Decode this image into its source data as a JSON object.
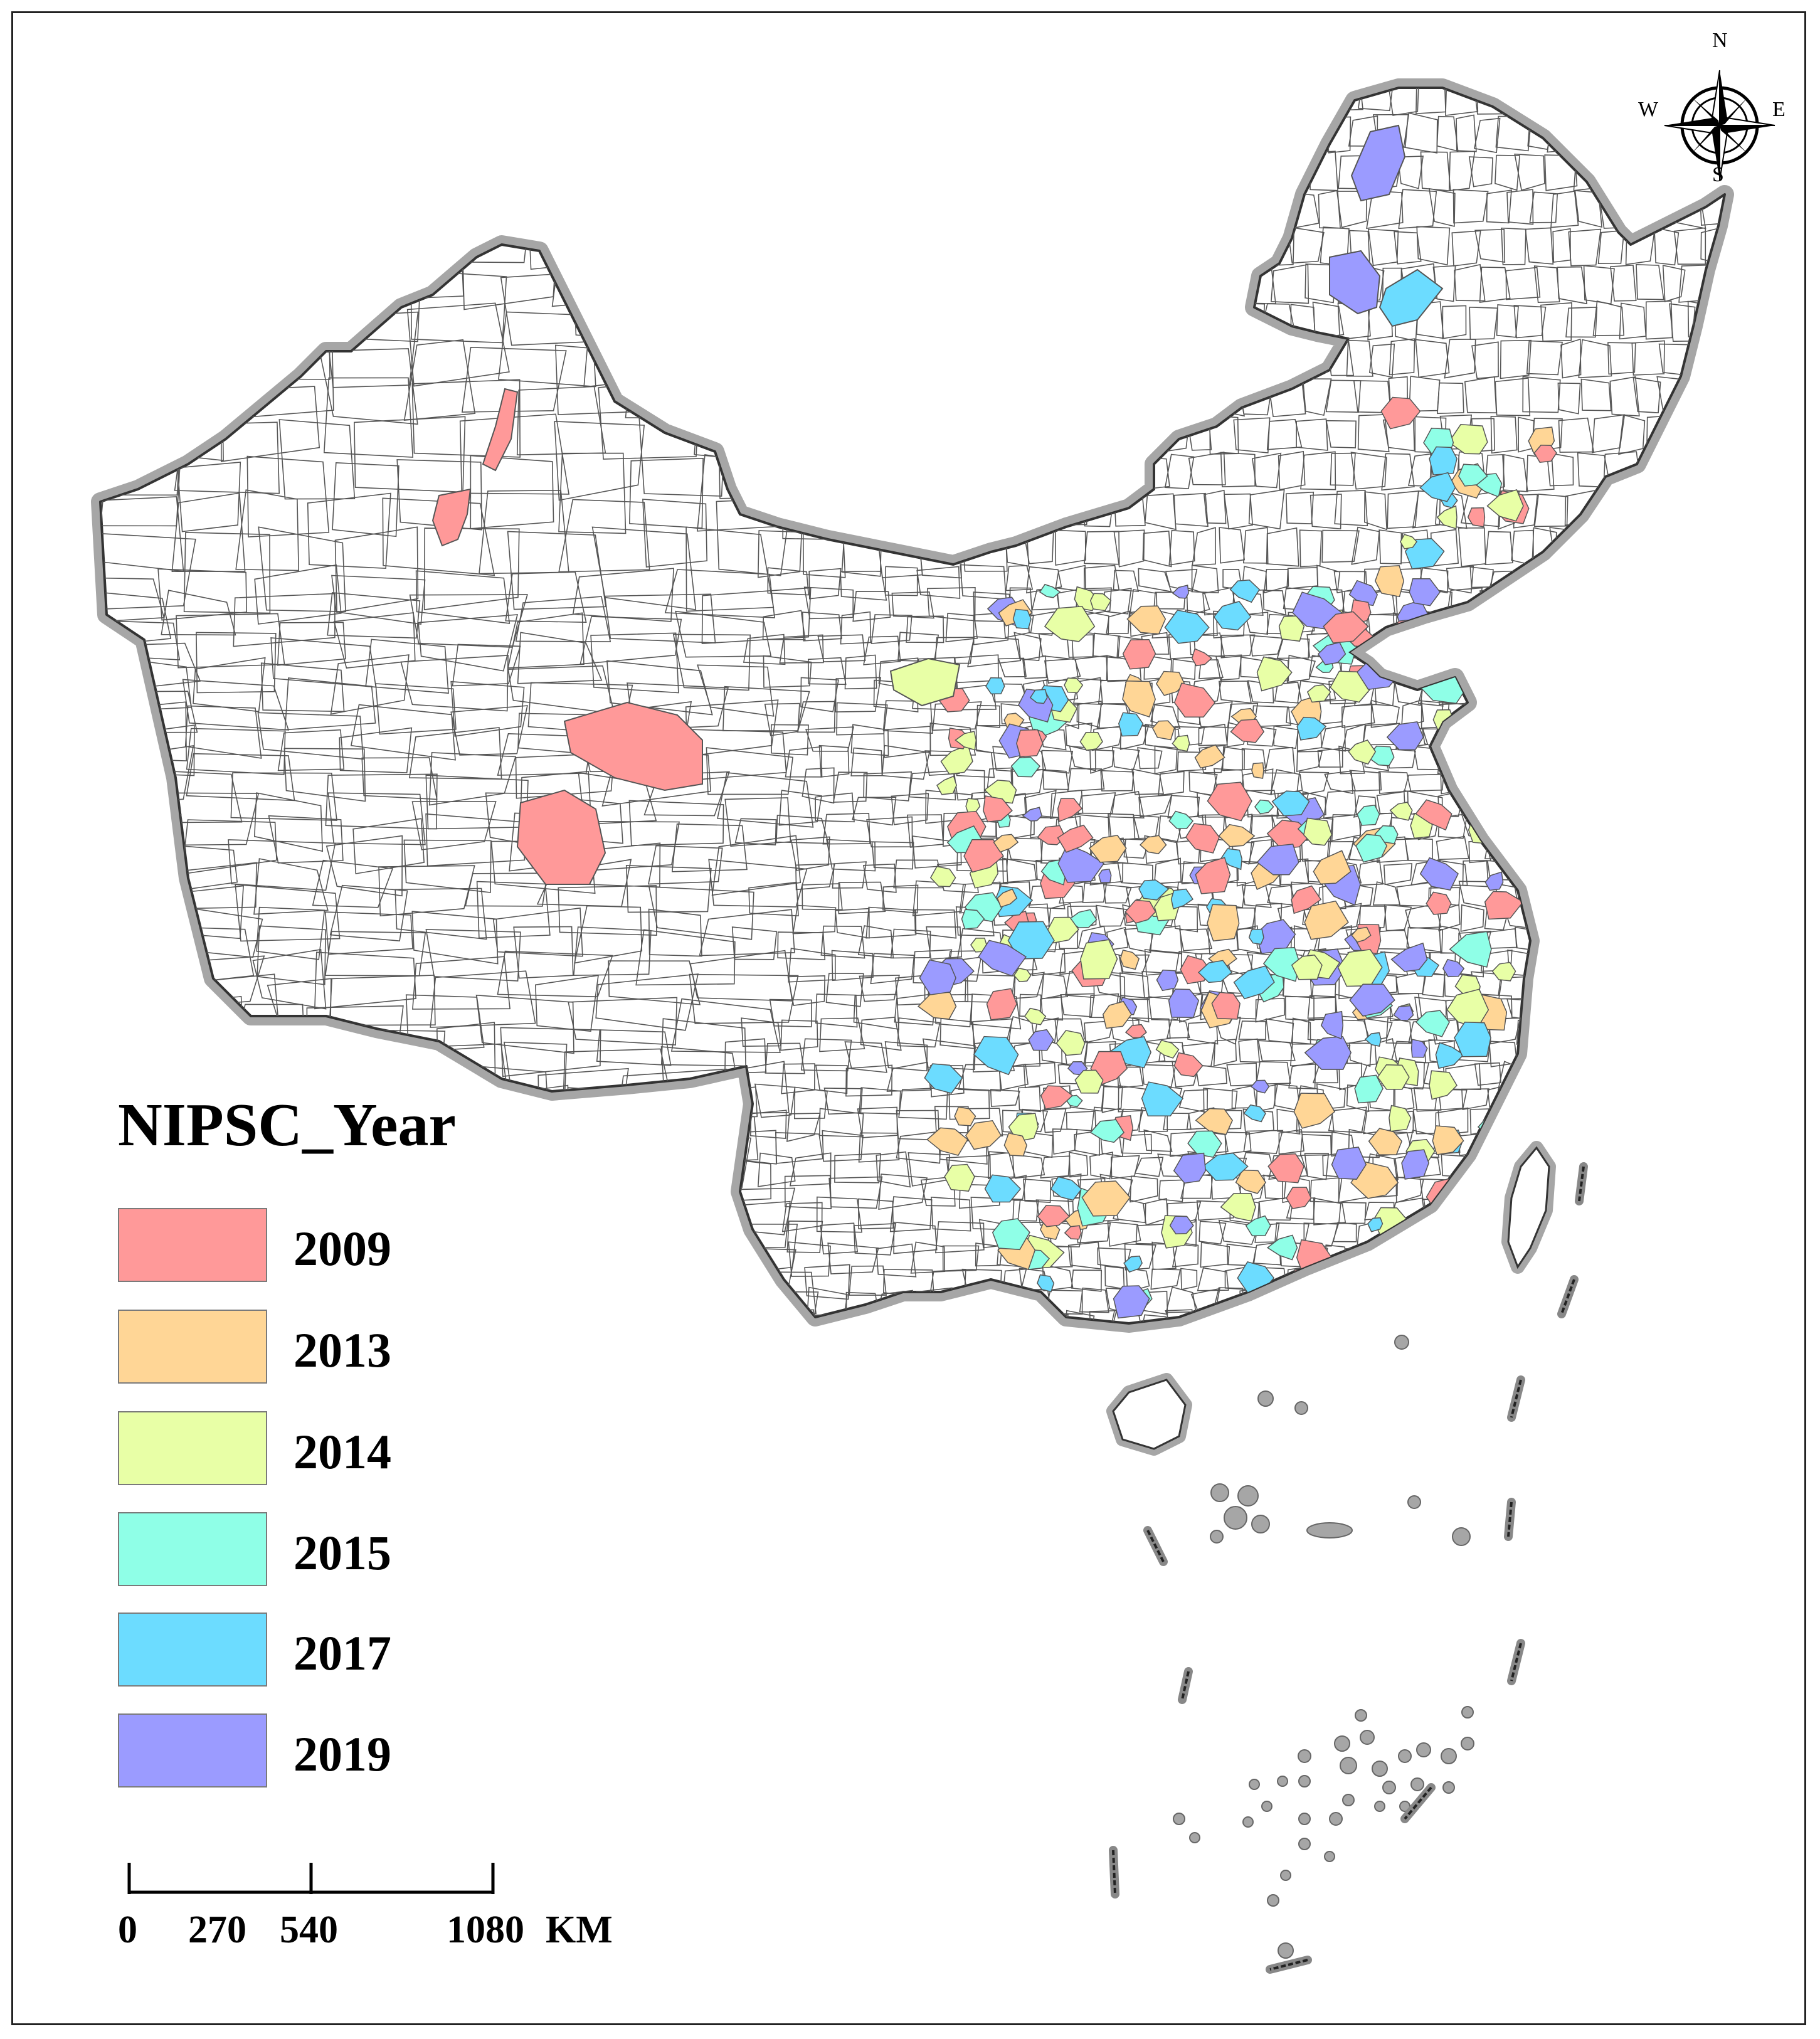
{
  "legend": {
    "title": "NIPSC_Year",
    "items": [
      {
        "label": "2009",
        "color": "#ff9999"
      },
      {
        "label": "2013",
        "color": "#ffd696"
      },
      {
        "label": "2014",
        "color": "#e8ffa6"
      },
      {
        "label": "2015",
        "color": "#8fffe7"
      },
      {
        "label": "2017",
        "color": "#6cdcff"
      },
      {
        "label": "2019",
        "color": "#9b9bff"
      }
    ]
  },
  "scale_bar": {
    "ticks": [
      "0",
      "270",
      "540",
      "1080"
    ],
    "unit": "KM"
  },
  "compass": {
    "n": "N",
    "s": "S",
    "e": "E",
    "w": "W"
  },
  "colors": {
    "border_halo": "#a6a6a6",
    "border_line": "#333333",
    "county_line": "#555555",
    "land": "#ffffff"
  }
}
